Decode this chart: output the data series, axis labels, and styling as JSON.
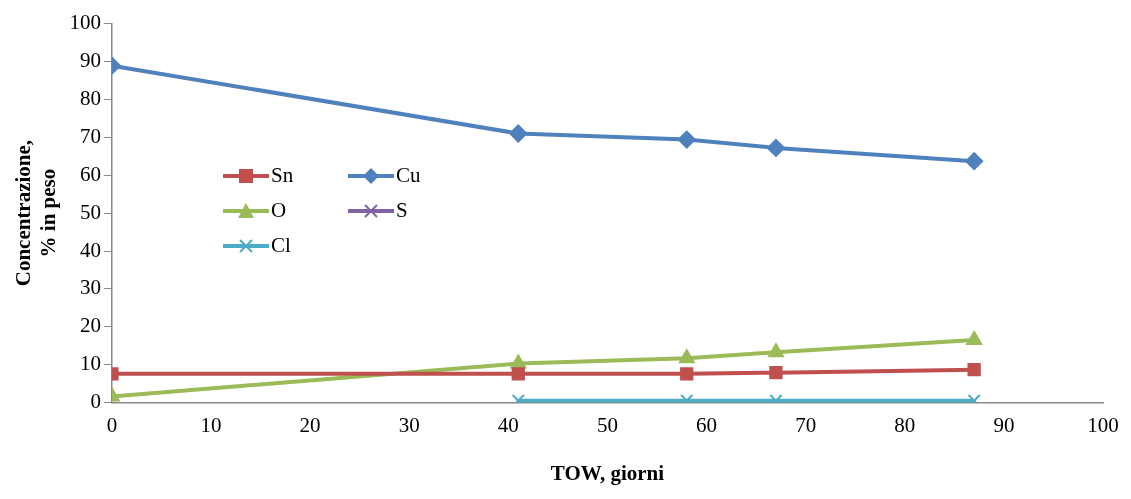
{
  "chart_data": {
    "type": "line",
    "xlabel": "TOW, giorni",
    "ylabel": "Concentrazione,\n% in peso",
    "x": [
      0,
      41,
      58,
      67,
      87
    ],
    "xlim": [
      0,
      100
    ],
    "xticks": [
      0,
      10,
      20,
      30,
      40,
      50,
      60,
      70,
      80,
      90,
      100
    ],
    "ylim": [
      0,
      100
    ],
    "yticks": [
      0,
      10,
      20,
      30,
      40,
      50,
      60,
      70,
      80,
      90,
      100
    ],
    "grid": false,
    "legend": "left",
    "series": [
      {
        "name": "Sn",
        "color": "#c0504d",
        "marker": "square",
        "values": [
          7.6,
          7.6,
          7.6,
          7.9,
          8.7
        ]
      },
      {
        "name": "Cu",
        "color": "#4f81bd",
        "marker": "diamond",
        "values": [
          88.9,
          71,
          69.4,
          67.2,
          63.7
        ]
      },
      {
        "name": "O",
        "color": "#9bbb59",
        "marker": "triangle",
        "values": [
          1.6,
          10.3,
          11.7,
          13.3,
          16.5
        ]
      },
      {
        "name": "S",
        "color": "#8064a2",
        "marker": "cross",
        "values": [
          null,
          null,
          null,
          null,
          null
        ]
      },
      {
        "name": "Cl",
        "color": "#4bacc6",
        "marker": "cross",
        "values": [
          null,
          0.5,
          0.5,
          0.5,
          0.5
        ]
      }
    ]
  }
}
